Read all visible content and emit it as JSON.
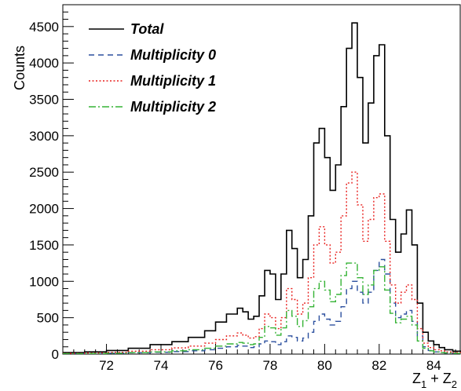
{
  "chart_data": {
    "type": "line",
    "xlabel": "Z1 + Z2",
    "xlabel_parts": {
      "a": "Z",
      "sub1": "1",
      "plus": " + ",
      "b": "Z",
      "sub2": "2"
    },
    "ylabel": "Counts",
    "xlim": [
      70.4,
      85.0
    ],
    "ylim": [
      0,
      4800
    ],
    "xticks": [
      72,
      74,
      76,
      78,
      80,
      82,
      84
    ],
    "yticks": [
      0,
      500,
      1000,
      1500,
      2000,
      2500,
      3000,
      3500,
      4000,
      4500
    ],
    "legend_position": "top-left",
    "grid": false,
    "x": [
      70.4,
      71.2,
      72.0,
      72.8,
      73.6,
      74.4,
      75.0,
      75.6,
      76.0,
      76.4,
      76.8,
      77.0,
      77.2,
      77.4,
      77.6,
      77.8,
      78.0,
      78.2,
      78.4,
      78.6,
      78.8,
      79.0,
      79.2,
      79.4,
      79.6,
      79.8,
      80.0,
      80.2,
      80.4,
      80.6,
      80.8,
      81.0,
      81.2,
      81.4,
      81.6,
      81.8,
      82.0,
      82.2,
      82.4,
      82.6,
      82.8,
      83.0,
      83.2,
      83.4,
      83.6,
      83.8,
      84.0,
      84.2,
      84.4,
      84.7,
      85.0
    ],
    "series": [
      {
        "name": "Total",
        "color": "#000000",
        "dash": "",
        "values": [
          20,
          30,
          50,
          80,
          130,
          170,
          230,
          320,
          440,
          550,
          630,
          580,
          480,
          520,
          800,
          1150,
          1100,
          750,
          1100,
          1700,
          1450,
          1050,
          1300,
          1900,
          2900,
          3100,
          2700,
          2250,
          2600,
          3400,
          4200,
          4550,
          3800,
          2900,
          3450,
          4100,
          4250,
          3000,
          1850,
          1400,
          1650,
          1980,
          1500,
          700,
          300,
          180,
          130,
          90,
          60,
          40,
          30
        ]
      },
      {
        "name": "Multiplicity 0",
        "color": "#2b4f9e",
        "dash": "7,5",
        "values": [
          5,
          8,
          12,
          18,
          25,
          35,
          45,
          60,
          80,
          100,
          120,
          110,
          90,
          100,
          140,
          180,
          170,
          130,
          170,
          250,
          230,
          180,
          220,
          300,
          450,
          550,
          480,
          400,
          450,
          650,
          900,
          1000,
          850,
          700,
          850,
          1150,
          1300,
          1100,
          700,
          500,
          550,
          600,
          450,
          250,
          100,
          50,
          30,
          20,
          15,
          10,
          8
        ]
      },
      {
        "name": "Multiplicity 1",
        "color": "#e8211f",
        "dash": "2,2.5",
        "values": [
          10,
          15,
          25,
          40,
          60,
          85,
          110,
          150,
          200,
          250,
          290,
          260,
          220,
          240,
          350,
          550,
          500,
          350,
          500,
          900,
          750,
          550,
          700,
          1050,
          1500,
          1750,
          1500,
          1250,
          1400,
          1900,
          2350,
          2500,
          2050,
          1550,
          1850,
          2150,
          2200,
          1550,
          950,
          700,
          850,
          950,
          750,
          350,
          150,
          90,
          60,
          45,
          30,
          20,
          15
        ]
      },
      {
        "name": "Multiplicity 2",
        "color": "#35b335",
        "dash": "9,3,2,3",
        "values": [
          5,
          8,
          12,
          20,
          30,
          45,
          60,
          80,
          110,
          140,
          160,
          150,
          130,
          140,
          230,
          380,
          360,
          260,
          360,
          600,
          520,
          380,
          460,
          650,
          900,
          1000,
          880,
          720,
          820,
          1080,
          1250,
          1250,
          1050,
          820,
          950,
          1150,
          1200,
          880,
          560,
          430,
          480,
          520,
          400,
          180,
          80,
          45,
          30,
          20,
          15,
          10,
          8
        ]
      }
    ]
  }
}
